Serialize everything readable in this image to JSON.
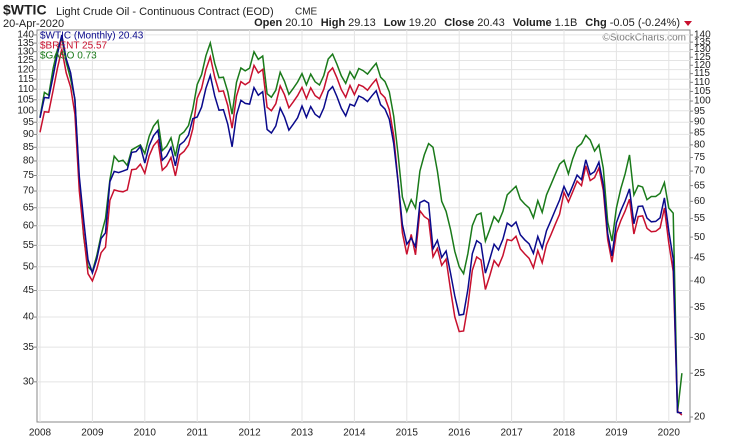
{
  "chart_data": {
    "type": "line",
    "title": "$WTIC",
    "subtitle": "Light Crude Oil - Continuous Contract (EOD)",
    "exchange": "CME",
    "date": "20-Apr-2020",
    "quote": [
      {
        "label": "Open",
        "value": "20.10"
      },
      {
        "label": "High",
        "value": "29.13"
      },
      {
        "label": "Low",
        "value": "19.20"
      },
      {
        "label": "Close",
        "value": "20.43"
      },
      {
        "label": "Volume",
        "value": "1.1B"
      },
      {
        "label": "Chg",
        "value": "-0.05 (-0.24%)"
      }
    ],
    "watermark": "©StockCharts.com",
    "categories": [
      "2008",
      null,
      null,
      null,
      null,
      null,
      null,
      null,
      null,
      null,
      null,
      null,
      "2009",
      null,
      null,
      null,
      null,
      null,
      null,
      null,
      null,
      null,
      null,
      null,
      "2010",
      null,
      null,
      null,
      null,
      null,
      null,
      null,
      null,
      null,
      null,
      null,
      "2011",
      null,
      null,
      null,
      null,
      null,
      null,
      null,
      null,
      null,
      null,
      null,
      "2012",
      null,
      null,
      null,
      null,
      null,
      null,
      null,
      null,
      null,
      null,
      null,
      "2013",
      null,
      null,
      null,
      null,
      null,
      null,
      null,
      null,
      null,
      null,
      null,
      "2014",
      null,
      null,
      null,
      null,
      null,
      null,
      null,
      null,
      null,
      null,
      null,
      "2015",
      null,
      null,
      null,
      null,
      null,
      null,
      null,
      null,
      null,
      null,
      null,
      "2016",
      null,
      null,
      null,
      null,
      null,
      null,
      null,
      null,
      null,
      null,
      null,
      "2017",
      null,
      null,
      null,
      null,
      null,
      null,
      null,
      null,
      null,
      null,
      null,
      "2018",
      null,
      null,
      null,
      null,
      null,
      null,
      null,
      null,
      null,
      null,
      null,
      "2019",
      null,
      null,
      null,
      null,
      null,
      null,
      null,
      null,
      null,
      null,
      null,
      "2020",
      null,
      null,
      null
    ],
    "ylim": [
      25.1,
      143.1
    ],
    "yticks": [
      140,
      135,
      130,
      125,
      120,
      115,
      110,
      105,
      100,
      95,
      90,
      85,
      80,
      75,
      70,
      65,
      60,
      55,
      50,
      45,
      40,
      35,
      30
    ],
    "y2lim": [
      19.5,
      143.6
    ],
    "y2ticks": [
      140,
      135,
      130,
      125,
      120,
      115,
      110,
      105,
      100,
      95,
      90,
      85,
      80,
      75,
      70,
      65,
      60,
      55,
      50,
      45,
      40,
      35,
      30,
      25,
      20
    ],
    "log_scale": true,
    "grid": true,
    "legend": "upper left",
    "series": [
      {
        "name": "$WTIC (Monthly) 20.43",
        "color": "#0a0a8c",
        "axis": "y2",
        "values": [
          91.75,
          101.84,
          101.58,
          113.46,
          127.35,
          140.0,
          124.08,
          115.46,
          100.64,
          68.1,
          54.43,
          44.6,
          41.68,
          44.76,
          49.66,
          51.12,
          66.31,
          69.89,
          69.45,
          70.0,
          70.61,
          77.0,
          77.28,
          79.36,
          72.89,
          79.66,
          83.76,
          86.15,
          73.97,
          75.63,
          78.95,
          71.92,
          79.97,
          81.43,
          84.11,
          91.38,
          92.19,
          96.97,
          106.72,
          113.93,
          102.7,
          95.42,
          95.7,
          88.81,
          79.2,
          93.19,
          100.36,
          98.83,
          98.48,
          107.07,
          103.02,
          104.87,
          86.53,
          84.96,
          88.06,
          96.47,
          92.19,
          86.24,
          88.91,
          91.82,
          97.49,
          92.05,
          97.23,
          93.46,
          91.97,
          96.56,
          105.03,
          107.65,
          102.33,
          96.38,
          92.72,
          98.42,
          97.49,
          102.59,
          101.58,
          99.74,
          102.71,
          105.37,
          98.17,
          95.96,
          91.16,
          80.54,
          66.15,
          53.27,
          48.24,
          49.76,
          47.6,
          59.63,
          60.3,
          59.47,
          47.12,
          49.2,
          45.09,
          46.59,
          41.65,
          37.04,
          33.62,
          33.75,
          38.34,
          45.92,
          49.1,
          48.33,
          41.6,
          44.7,
          48.24,
          46.86,
          49.44,
          53.72,
          52.81,
          54.01,
          50.6,
          49.33,
          48.32,
          46.04,
          50.17,
          47.23,
          51.67,
          54.38,
          57.4,
          60.42,
          64.73,
          61.64,
          64.94,
          68.57,
          67.04,
          74.15,
          68.76,
          69.8,
          73.25,
          65.31,
          50.93,
          45.41,
          53.79,
          57.22,
          60.14,
          63.91,
          53.5,
          58.47,
          58.58,
          55.1,
          54.07,
          54.18,
          55.17,
          61.06,
          51.56,
          44.76,
          20.48,
          20.43
        ]
      },
      {
        "name": "$BRENT 25.57",
        "color": "#c8102e",
        "axis": "y2",
        "values": [
          85.3,
          94.7,
          94.5,
          105.5,
          118.4,
          130.2,
          115.4,
          107.4,
          93.6,
          63.3,
          50.6,
          41.5,
          40.0,
          42.5,
          46.2,
          47.5,
          60.3,
          63.6,
          63.2,
          63.0,
          63.6,
          70.5,
          70.7,
          72.5,
          69.2,
          75.7,
          79.6,
          81.8,
          70.3,
          71.8,
          75.0,
          68.3,
          76.0,
          77.4,
          80.0,
          86.8,
          101.4,
          106.7,
          117.4,
          125.3,
          113.0,
          105.0,
          105.3,
          97.7,
          87.1,
          102.5,
          110.4,
          108.7,
          110.3,
          119.9,
          115.4,
          117.5,
          96.9,
          95.2,
          98.6,
          108.0,
          103.3,
          96.6,
          99.6,
          102.8,
          107.2,
          101.3,
          107.0,
          102.8,
          101.2,
          106.2,
          115.5,
          118.4,
          112.6,
          106.0,
          102.0,
          108.3,
          103.3,
          108.7,
          107.7,
          105.7,
          108.9,
          111.7,
          104.1,
          101.7,
          95.7,
          83.8,
          66.2,
          51.1,
          45.8,
          50.7,
          45.7,
          57.2,
          55.5,
          54.7,
          45.2,
          47.2,
          43.3,
          44.7,
          38.3,
          33.3,
          30.9,
          31.0,
          35.3,
          42.2,
          45.2,
          44.5,
          38.3,
          41.1,
          44.4,
          43.1,
          45.5,
          49.4,
          49.1,
          50.2,
          47.1,
          45.9,
          44.9,
          42.8,
          46.7,
          43.9,
          48.1,
          50.6,
          53.4,
          56.2,
          62.8,
          59.8,
          63.0,
          66.5,
          65.0,
          71.9,
          66.7,
          67.7,
          71.1,
          63.4,
          49.4,
          44.0,
          51.1,
          54.4,
          57.1,
          60.7,
          50.8,
          55.5,
          55.7,
          52.3,
          51.4,
          51.5,
          52.4,
          58.0,
          48.5,
          42.0,
          20.6,
          20.2
        ]
      },
      {
        "name": "$GASO 0.73",
        "color": "#1a7a1a",
        "axis": "y2",
        "values": [
          92.0,
          104.5,
          103.0,
          118.0,
          130.0,
          138.0,
          122.0,
          112.0,
          101.0,
          66.0,
          50.0,
          43.0,
          42.0,
          45.5,
          50.5,
          55.0,
          67.0,
          75.5,
          73.5,
          74.0,
          72.0,
          78.0,
          79.0,
          80.0,
          76.5,
          83.6,
          88.0,
          90.5,
          77.7,
          79.4,
          82.9,
          75.5,
          84.0,
          85.5,
          88.3,
          96.0,
          108.8,
          114.4,
          125.9,
          134.4,
          121.2,
          112.6,
          112.9,
          104.8,
          93.5,
          110.0,
          118.4,
          116.6,
          118.2,
          128.5,
          123.6,
          125.8,
          103.8,
          102.0,
          105.7,
          115.8,
          110.6,
          103.5,
          106.7,
          110.2,
          115.0,
          108.6,
          114.7,
          110.3,
          108.5,
          113.9,
          123.9,
          127.0,
          120.7,
          113.7,
          109.4,
          116.1,
          112.1,
          118.0,
          116.8,
          114.7,
          118.1,
          121.2,
          112.9,
          110.4,
          104.8,
          92.6,
          76.1,
          61.3,
          57.0,
          60.5,
          58.0,
          70.0,
          76.0,
          80.5,
          79.0,
          70.0,
          60.0,
          57.0,
          52.0,
          46.5,
          43.0,
          41.5,
          46.0,
          53.0,
          56.0,
          56.5,
          49.0,
          52.0,
          55.5,
          54.0,
          57.0,
          62.0,
          63.4,
          64.8,
          60.7,
          59.2,
          58.0,
          55.2,
          60.2,
          56.7,
          62.0,
          65.3,
          68.9,
          72.5,
          74.0,
          69.0,
          74.5,
          79.0,
          80.5,
          84.0,
          82.0,
          77.5,
          80.0,
          71.0,
          54.0,
          49.0,
          58.0,
          64.0,
          69.0,
          76.0,
          62.0,
          65.0,
          64.5,
          60.5,
          61.5,
          61.5,
          62.5,
          66.0,
          58.0,
          56.5,
          20.5,
          25.0
        ]
      }
    ]
  }
}
